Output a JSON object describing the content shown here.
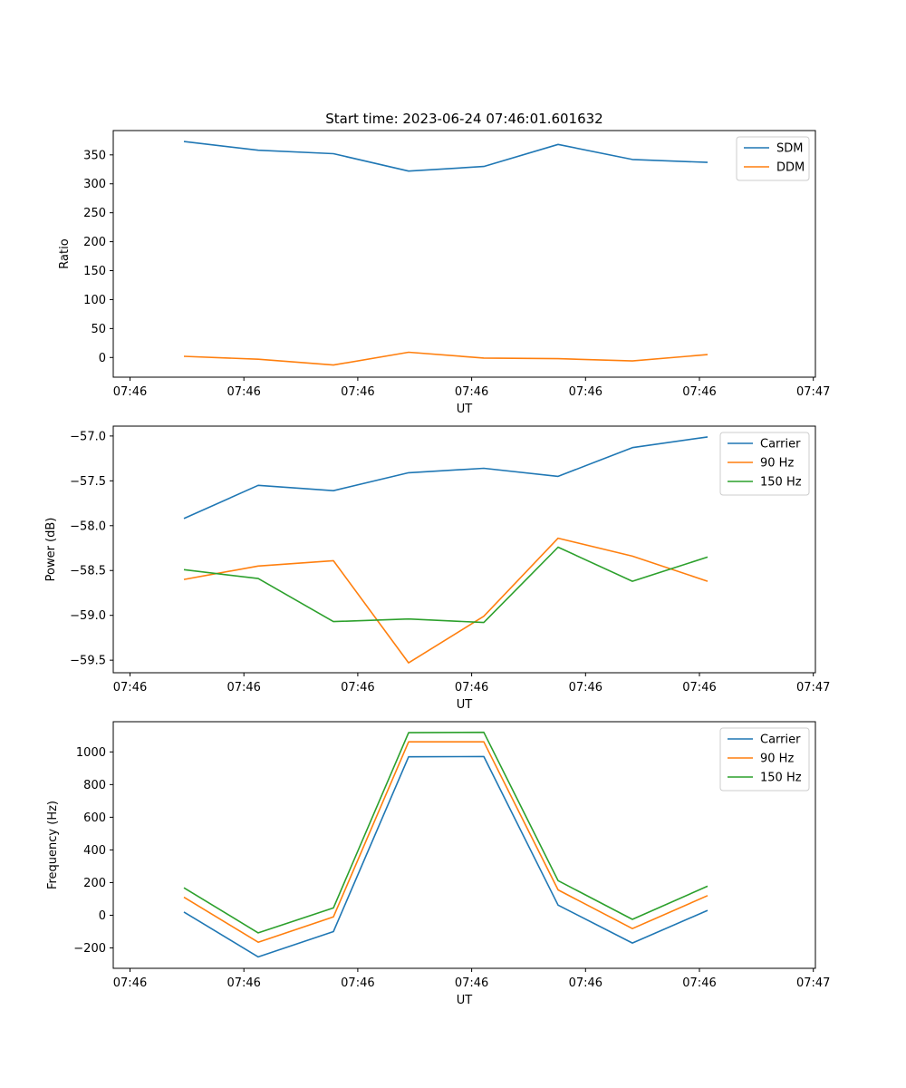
{
  "figure": {
    "title": "Start time: 2023-06-24 07:46:01.601632"
  },
  "colors": {
    "blue": "#1f77b4",
    "orange": "#ff7f0e",
    "green": "#2ca02c"
  },
  "chart_data": [
    {
      "type": "line",
      "ylabel": "Ratio",
      "xlabel": "UT",
      "x_tick_labels": [
        "07:46",
        "07:46",
        "07:46",
        "07:46",
        "07:46",
        "07:46",
        "07:46",
        "07:47"
      ],
      "yticks": [
        0,
        50,
        100,
        150,
        200,
        250,
        300,
        350
      ],
      "ytick_labels": [
        "0",
        "50",
        "100",
        "150",
        "200",
        "250",
        "300",
        "350"
      ],
      "ylim": [
        -34,
        392
      ],
      "legend": "top-right",
      "grid": false,
      "series": [
        {
          "name": "SDM",
          "color": "blue",
          "values": [
            373,
            358,
            352,
            322,
            330,
            368,
            342,
            337
          ]
        },
        {
          "name": "DDM",
          "color": "orange",
          "values": [
            2,
            -3,
            -13,
            9,
            -1,
            -2,
            -6,
            5
          ]
        }
      ]
    },
    {
      "type": "line",
      "ylabel": "Power (dB)",
      "xlabel": "UT",
      "x_tick_labels": [
        "07:46",
        "07:46",
        "07:46",
        "07:46",
        "07:46",
        "07:46",
        "07:46",
        "07:47"
      ],
      "yticks": [
        -59.5,
        -59.0,
        -58.5,
        -58.0,
        -57.5,
        -57.0
      ],
      "ytick_labels": [
        "−59.5",
        "−59.0",
        "−58.5",
        "−58.0",
        "−57.5",
        "−57.0"
      ],
      "ylim": [
        -59.64,
        -56.89
      ],
      "legend": "top-right",
      "grid": false,
      "series": [
        {
          "name": "Carrier",
          "color": "blue",
          "values": [
            -57.92,
            -57.55,
            -57.61,
            -57.41,
            -57.36,
            -57.45,
            -57.13,
            -57.01
          ]
        },
        {
          "name": "90 Hz",
          "color": "orange",
          "values": [
            -58.6,
            -58.45,
            -58.39,
            -59.53,
            -59.01,
            -58.14,
            -58.34,
            -58.62
          ]
        },
        {
          "name": "150 Hz",
          "color": "green",
          "values": [
            -58.49,
            -58.59,
            -59.07,
            -59.04,
            -59.08,
            -58.24,
            -58.62,
            -58.35
          ]
        }
      ]
    },
    {
      "type": "line",
      "ylabel": "Frequency (Hz)",
      "xlabel": "UT",
      "x_tick_labels": [
        "07:46",
        "07:46",
        "07:46",
        "07:46",
        "07:46",
        "07:46",
        "07:46",
        "07:47"
      ],
      "yticks": [
        -200,
        0,
        200,
        400,
        600,
        800,
        1000
      ],
      "ytick_labels": [
        "−200",
        "0",
        "200",
        "400",
        "600",
        "800",
        "1000"
      ],
      "ylim": [
        -325,
        1185
      ],
      "legend": "top-right",
      "grid": false,
      "series": [
        {
          "name": "Carrier",
          "color": "blue",
          "values": [
            20,
            -255,
            -100,
            970,
            972,
            62,
            -170,
            30
          ]
        },
        {
          "name": "90 Hz",
          "color": "orange",
          "values": [
            110,
            -165,
            -10,
            1062,
            1062,
            155,
            -82,
            120
          ]
        },
        {
          "name": "150 Hz",
          "color": "green",
          "values": [
            168,
            -108,
            45,
            1118,
            1120,
            212,
            -25,
            178
          ]
        }
      ]
    }
  ]
}
